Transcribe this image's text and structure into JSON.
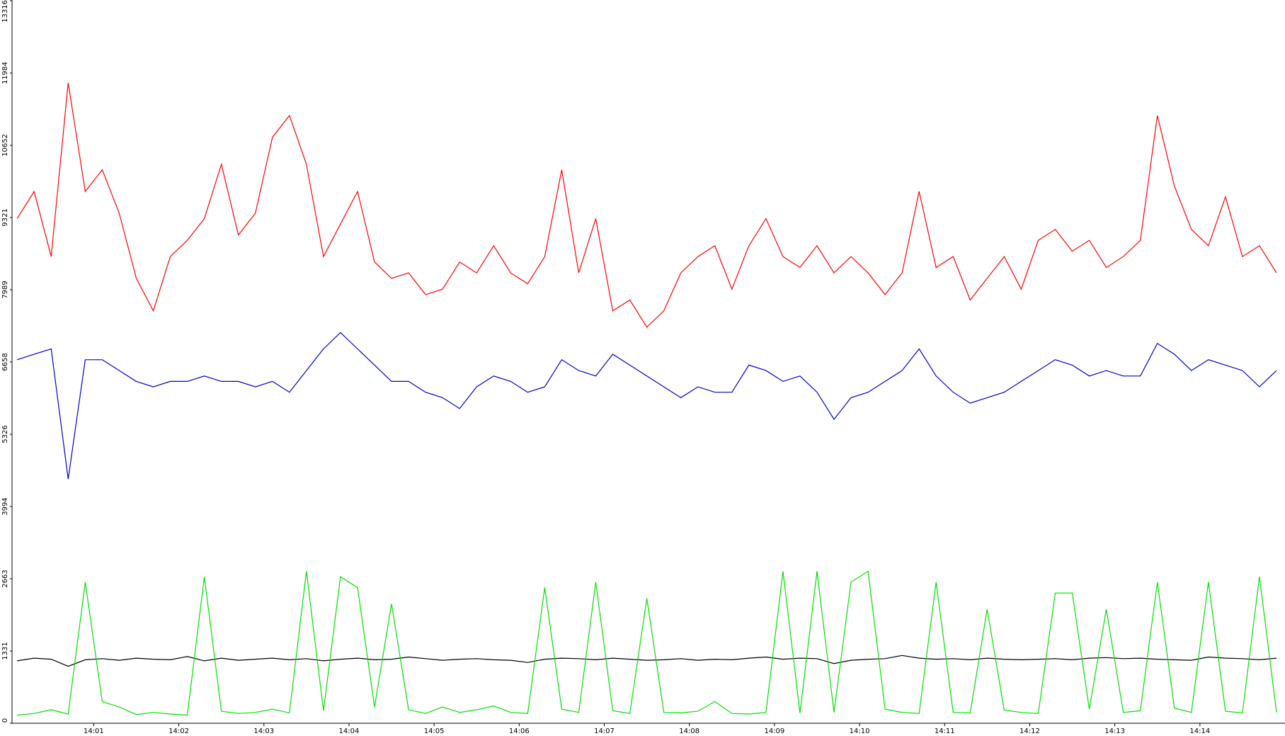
{
  "chart_data": {
    "type": "line",
    "x": [
      0.1,
      0.3,
      0.5,
      0.7,
      0.9,
      1.1,
      1.3,
      1.5,
      1.7,
      1.9,
      2.1,
      2.3,
      2.5,
      2.7,
      2.9,
      3.1,
      3.3,
      3.5,
      3.7,
      3.9,
      4.1,
      4.3,
      4.5,
      4.7,
      4.9,
      5.1,
      5.3,
      5.5,
      5.7,
      5.9,
      6.1,
      6.3,
      6.5,
      6.7,
      6.9,
      7.1,
      7.3,
      7.5,
      7.7,
      7.9,
      8.1,
      8.3,
      8.5,
      8.7,
      8.9,
      9.1,
      9.3,
      9.5,
      9.7,
      9.9,
      10.1,
      10.3,
      10.5,
      10.7,
      10.9,
      11.1,
      11.3,
      11.5,
      11.7,
      11.9,
      12.1,
      12.3,
      12.5,
      12.7,
      12.9,
      13.1,
      13.3,
      13.5,
      13.7,
      13.9,
      14.1,
      14.3,
      14.5,
      14.7,
      14.9
    ],
    "series": [
      {
        "color": "#ff0000",
        "values": [
          9300,
          9800,
          8600,
          11800,
          9800,
          10200,
          9400,
          8200,
          7600,
          8600,
          8900,
          9300,
          10300,
          9000,
          9400,
          10800,
          11200,
          10300,
          8600,
          9200,
          9800,
          8500,
          8200,
          8300,
          7900,
          8000,
          8500,
          8300,
          8800,
          8300,
          8100,
          8600,
          10200,
          8300,
          9300,
          7600,
          7800,
          7300,
          7600,
          8300,
          8600,
          8800,
          8000,
          8800,
          9300,
          8600,
          8400,
          8800,
          8300,
          8600,
          8300,
          7900,
          8300,
          9800,
          8400,
          8600,
          7800,
          8200,
          8600,
          8000,
          8900,
          9100,
          8700,
          8900,
          8400,
          8600,
          8900,
          11200,
          9900,
          9100,
          8800,
          9700,
          8600,
          8800,
          8300
        ]
      },
      {
        "color": "#0000cc",
        "values": [
          6700,
          6800,
          6900,
          4500,
          6700,
          6700,
          6500,
          6300,
          6200,
          6300,
          6300,
          6400,
          6300,
          6300,
          6200,
          6300,
          6100,
          6500,
          6900,
          7200,
          6900,
          6600,
          6300,
          6300,
          6100,
          6000,
          5800,
          6200,
          6400,
          6300,
          6100,
          6200,
          6700,
          6500,
          6400,
          6800,
          6600,
          6400,
          6200,
          6000,
          6200,
          6100,
          6100,
          6600,
          6500,
          6300,
          6400,
          6100,
          5600,
          6000,
          6100,
          6300,
          6500,
          6900,
          6400,
          6100,
          5900,
          6000,
          6100,
          6300,
          6500,
          6700,
          6600,
          6400,
          6500,
          6400,
          6400,
          7000,
          6800,
          6500,
          6700,
          6600,
          6500,
          6200,
          6500
        ]
      },
      {
        "color": "#000000",
        "values": [
          1150,
          1200,
          1180,
          1050,
          1170,
          1190,
          1160,
          1200,
          1180,
          1170,
          1230,
          1150,
          1200,
          1160,
          1180,
          1200,
          1170,
          1190,
          1150,
          1180,
          1200,
          1170,
          1180,
          1220,
          1190,
          1160,
          1180,
          1190,
          1170,
          1160,
          1120,
          1180,
          1200,
          1190,
          1170,
          1200,
          1180,
          1160,
          1170,
          1190,
          1160,
          1180,
          1170,
          1200,
          1220,
          1180,
          1200,
          1190,
          1100,
          1160,
          1180,
          1190,
          1250,
          1200,
          1180,
          1190,
          1170,
          1200,
          1180,
          1170,
          1180,
          1190,
          1170,
          1200,
          1210,
          1190,
          1200,
          1180,
          1170,
          1160,
          1220,
          1200,
          1190,
          1170,
          1200
        ]
      },
      {
        "color": "#00e000",
        "values": [
          150,
          180,
          250,
          170,
          2600,
          400,
          300,
          160,
          200,
          170,
          150,
          2700,
          220,
          180,
          200,
          260,
          190,
          2800,
          230,
          2700,
          2500,
          300,
          2200,
          250,
          180,
          300,
          200,
          250,
          320,
          200,
          180,
          2500,
          260,
          200,
          2600,
          230,
          180,
          2300,
          200,
          190,
          220,
          400,
          180,
          170,
          200,
          2800,
          190,
          2800,
          200,
          2600,
          2800,
          260,
          200,
          180,
          2600,
          200,
          190,
          2100,
          240,
          200,
          180,
          2400,
          2400,
          260,
          2100,
          200,
          230,
          2600,
          280,
          200,
          2600,
          220,
          190,
          2700,
          200
        ]
      }
    ],
    "xlim": [
      0.04,
      15.0
    ],
    "xticks": [
      {
        "value": 1,
        "label": "14:01"
      },
      {
        "value": 2,
        "label": "14:02"
      },
      {
        "value": 3,
        "label": "14:03"
      },
      {
        "value": 4,
        "label": "14:04"
      },
      {
        "value": 5,
        "label": "14:05"
      },
      {
        "value": 6,
        "label": "14:06"
      },
      {
        "value": 7,
        "label": "14:07"
      },
      {
        "value": 8,
        "label": "14:08"
      },
      {
        "value": 9,
        "label": "14:09"
      },
      {
        "value": 10,
        "label": "14:10"
      },
      {
        "value": 11,
        "label": "14:11"
      },
      {
        "value": 12,
        "label": "14:12"
      },
      {
        "value": 13,
        "label": "14:13"
      },
      {
        "value": 14,
        "label": "14:14"
      }
    ],
    "ylim": [
      0,
      13316
    ],
    "yticks": [
      0,
      1331,
      2663,
      3994,
      5326,
      6658,
      7989,
      9321,
      10652,
      11984,
      13316
    ]
  }
}
